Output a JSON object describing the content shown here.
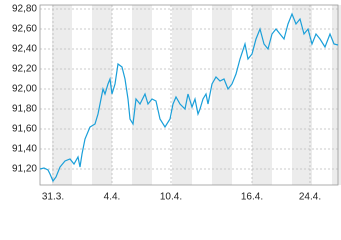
{
  "chart_data": {
    "type": "line",
    "x": [
      0,
      4,
      8,
      10,
      13,
      16,
      20,
      25,
      30,
      34,
      38,
      40,
      42,
      45,
      50,
      55,
      58,
      63,
      65,
      68,
      70,
      72,
      75,
      78,
      82,
      85,
      88,
      90,
      93,
      96,
      100,
      105,
      108,
      112,
      116,
      120,
      125,
      130,
      133,
      136,
      140,
      145,
      148,
      152,
      155,
      158,
      160,
      163,
      166,
      168,
      172,
      176,
      180,
      184,
      188,
      192,
      196,
      200,
      205,
      208,
      212,
      216,
      220,
      224,
      228,
      232,
      236,
      240,
      244,
      248,
      252,
      256,
      260,
      264,
      268,
      272,
      276,
      280,
      285,
      290,
      294,
      298
    ],
    "series": [
      {
        "color": "#1a9fd9",
        "values": [
          91.2,
          91.21,
          91.19,
          91.15,
          91.08,
          91.12,
          91.22,
          91.28,
          91.3,
          91.25,
          91.32,
          91.22,
          91.35,
          91.5,
          91.62,
          91.65,
          91.75,
          92.0,
          91.95,
          92.05,
          92.1,
          91.95,
          92.05,
          92.25,
          92.22,
          92.1,
          91.9,
          91.7,
          91.65,
          91.9,
          91.85,
          91.95,
          91.85,
          91.9,
          91.88,
          91.7,
          91.62,
          91.7,
          91.85,
          91.92,
          91.85,
          91.8,
          91.95,
          91.82,
          91.9,
          91.75,
          91.8,
          91.9,
          91.95,
          91.85,
          92.05,
          92.12,
          92.08,
          92.1,
          92.0,
          92.05,
          92.15,
          92.3,
          92.45,
          92.3,
          92.35,
          92.5,
          92.6,
          92.45,
          92.4,
          92.55,
          92.6,
          92.55,
          92.5,
          92.65,
          92.75,
          92.65,
          92.7,
          92.55,
          92.6,
          92.45,
          92.55,
          92.5,
          92.42,
          92.55,
          92.45,
          92.44
        ]
      }
    ],
    "xlim": [
      0,
      298
    ],
    "xticks": [
      {
        "value": 13,
        "label": "31.3."
      },
      {
        "value": 72,
        "label": "4.4."
      },
      {
        "value": 131,
        "label": "10.4."
      },
      {
        "value": 212,
        "label": "16.4."
      },
      {
        "value": 270,
        "label": "24.4."
      }
    ],
    "ylim": [
      91.04,
      92.84
    ],
    "yticks": [
      {
        "value": 91.2,
        "label": "91,20"
      },
      {
        "value": 91.4,
        "label": "91,40"
      },
      {
        "value": 91.6,
        "label": "91,60"
      },
      {
        "value": 91.8,
        "label": "91,80"
      },
      {
        "value": 92.0,
        "label": "92,00"
      },
      {
        "value": 92.2,
        "label": "92,20"
      },
      {
        "value": 92.4,
        "label": "92,40"
      },
      {
        "value": 92.6,
        "label": "92,60"
      },
      {
        "value": 92.8,
        "label": "92,80"
      }
    ],
    "grid": true
  }
}
